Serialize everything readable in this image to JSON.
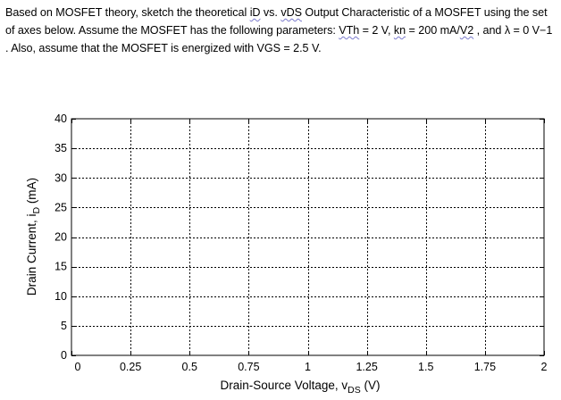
{
  "question": {
    "segments": [
      {
        "text": "Based on MOSFET theory, sketch the theoretical ",
        "squiggle": false
      },
      {
        "text": "iD",
        "squiggle": true
      },
      {
        "text": " vs. ",
        "squiggle": false
      },
      {
        "text": "vDS",
        "squiggle": true
      },
      {
        "text": " Output Characteristic of a MOSFET using the set of axes below. Assume the MOSFET has the following parameters: ",
        "squiggle": false
      },
      {
        "text": "VTh",
        "squiggle": true
      },
      {
        "text": " = 2 V, ",
        "squiggle": false
      },
      {
        "text": "kn",
        "squiggle": true
      },
      {
        "text": " = 200 mA/",
        "squiggle": false
      },
      {
        "text": "V2",
        "squiggle": true
      },
      {
        "text": " , and λ = 0 V−1 . Also, assume that the MOSFET is energized with VGS = 2.5 V.",
        "squiggle": false
      }
    ]
  },
  "chart_data": {
    "type": "line",
    "title": "",
    "xlabel": "Drain-Source Voltage, v",
    "xlabel_sub": "DS",
    "xlabel_unit": " (V)",
    "ylabel": "Drain Current, i",
    "ylabel_sub": "D",
    "ylabel_unit": " (mA)",
    "xlim": [
      0,
      2
    ],
    "ylim": [
      0,
      40
    ],
    "xticks": [
      0,
      0.25,
      0.5,
      0.75,
      1,
      1.25,
      1.5,
      1.75,
      2
    ],
    "xtick_labels": [
      "0",
      "0.25",
      "0.5",
      "0.75",
      "1",
      "1.25",
      "1.5",
      "1.75",
      "2"
    ],
    "yticks": [
      0,
      5,
      10,
      15,
      20,
      25,
      30,
      35,
      40
    ],
    "ytick_labels": [
      "0",
      "5",
      "10",
      "15",
      "20",
      "25",
      "30",
      "35",
      "40"
    ],
    "grid": true,
    "grid_style": "dotted",
    "series": []
  },
  "colors": {
    "axis": "#000000",
    "grid": "#000000",
    "squiggle": "#7a7acc"
  }
}
